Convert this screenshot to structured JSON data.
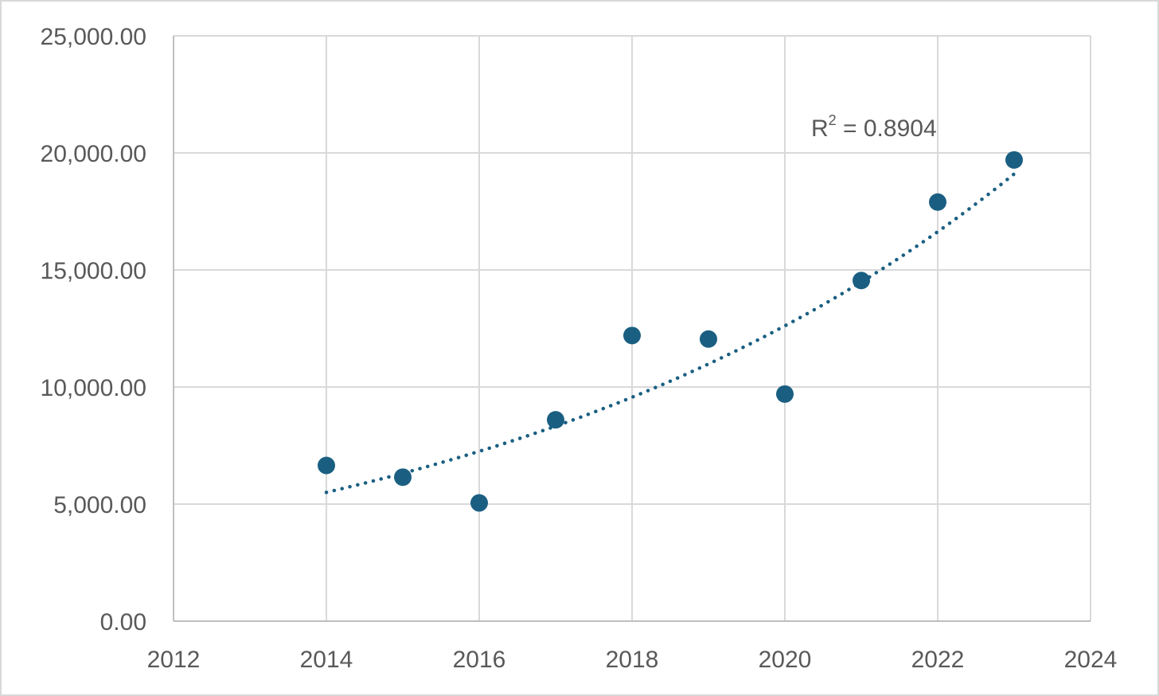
{
  "chart_data": {
    "type": "scatter",
    "title": "",
    "xlabel": "",
    "ylabel": "",
    "xlim": [
      2012,
      2024
    ],
    "ylim": [
      0,
      25000
    ],
    "x_ticks": [
      "2012",
      "2014",
      "2016",
      "2018",
      "2020",
      "2022",
      "2024"
    ],
    "y_ticks": [
      "0.00",
      "5,000.00",
      "10,000.00",
      "15,000.00",
      "20,000.00",
      "25,000.00"
    ],
    "grid": true,
    "legend": "none",
    "series": [
      {
        "x": [
          2014,
          2015,
          2016,
          2017,
          2018,
          2019,
          2020,
          2021,
          2022,
          2023
        ],
        "y": [
          6650,
          6150,
          5050,
          8600,
          12200,
          12050,
          9700,
          14550,
          17900,
          19700
        ],
        "color": "#1a5f82",
        "trendline": {
          "type": "exponential",
          "style": "dotted",
          "from_x": 2014,
          "to_x": 2023,
          "y_start": 5500,
          "y_end": 19100,
          "r2_label_prefix": "R",
          "r2_label_sup": "2",
          "r2_label_value": " = 0.8904"
        }
      }
    ]
  }
}
